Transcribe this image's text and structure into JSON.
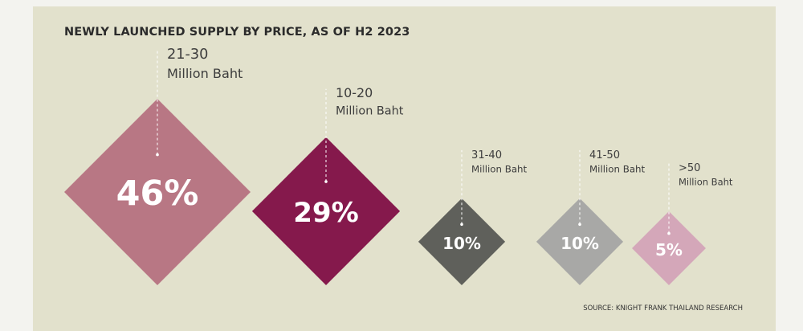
{
  "chart_data": {
    "type": "bar",
    "title": "NEWLY LAUNCHED SUPPLY BY PRICE, AS OF H2 2023",
    "categories": [
      {
        "range": "21-30",
        "unit": "Million Baht"
      },
      {
        "range": "10-20",
        "unit": "Million Baht"
      },
      {
        "range": "31-40",
        "unit": "Million Baht"
      },
      {
        "range": "41-50",
        "unit": "Million Baht"
      },
      {
        "range": ">50",
        "unit": "Million Baht"
      }
    ],
    "values": [
      46,
      29,
      10,
      10,
      5
    ],
    "value_labels": [
      "46%",
      "29%",
      "10%",
      "10%",
      "5%"
    ],
    "colors": [
      "#b87784",
      "#85194c",
      "#5f605b",
      "#a8a8a6",
      "#d4a7b9"
    ],
    "source": "SOURCE: KNIGHT FRANK THAILAND RESEARCH"
  }
}
